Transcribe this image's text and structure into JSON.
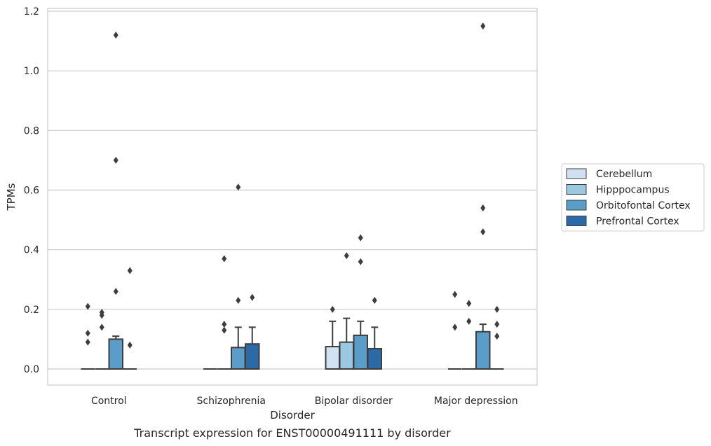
{
  "chart_data": {
    "type": "box",
    "caption": "Transcript expression for ENST00000491111 by disorder",
    "xlabel": "Disorder",
    "ylabel": "TPMs",
    "ylim": [
      -0.055,
      1.21
    ],
    "yticks": [
      0.0,
      0.2,
      0.4,
      0.6,
      0.8,
      1.0,
      1.2
    ],
    "ytick_labels": [
      "0.0",
      "0.2",
      "0.4",
      "0.6",
      "0.8",
      "1.0",
      "1.2"
    ],
    "grid": "horizontal",
    "legend_position": "right",
    "categories": [
      "Control",
      "Schizophrenia",
      "Bipolar disorder",
      "Major depression"
    ],
    "series": [
      {
        "name": "Cerebellum",
        "color": "#d0e1f2",
        "boxes": [
          {
            "q1": 0,
            "median": 0,
            "q3": 0,
            "whisker_low": 0,
            "whisker_high": 0,
            "outliers": [
              0.09,
              0.12,
              0.21
            ]
          },
          {
            "q1": 0,
            "median": 0,
            "q3": 0,
            "whisker_low": 0,
            "whisker_high": 0,
            "outliers": []
          },
          {
            "q1": 0,
            "median": 0,
            "q3": 0.075,
            "whisker_low": 0,
            "whisker_high": 0.16,
            "outliers": [
              0.2
            ]
          },
          {
            "q1": 0,
            "median": 0,
            "q3": 0,
            "whisker_low": 0,
            "whisker_high": 0,
            "outliers": [
              0.14,
              0.25
            ]
          }
        ]
      },
      {
        "name": "Hipppocampus",
        "color": "#9ac8e0",
        "boxes": [
          {
            "q1": 0,
            "median": 0,
            "q3": 0,
            "whisker_low": 0,
            "whisker_high": 0,
            "outliers": [
              0.14,
              0.18,
              0.19
            ]
          },
          {
            "q1": 0,
            "median": 0,
            "q3": 0,
            "whisker_low": 0,
            "whisker_high": 0,
            "outliers": [
              0.13,
              0.15,
              0.37
            ]
          },
          {
            "q1": 0,
            "median": 0,
            "q3": 0.09,
            "whisker_low": 0,
            "whisker_high": 0.17,
            "outliers": [
              0.38
            ]
          },
          {
            "q1": 0,
            "median": 0,
            "q3": 0,
            "whisker_low": 0,
            "whisker_high": 0,
            "outliers": [
              0.16,
              0.22
            ]
          }
        ]
      },
      {
        "name": "Orbitofontal Cortex",
        "color": "#5a9dc9",
        "boxes": [
          {
            "q1": 0,
            "median": 0,
            "q3": 0.1,
            "whisker_low": 0,
            "whisker_high": 0.11,
            "outliers": [
              0.26,
              0.7,
              1.12
            ]
          },
          {
            "q1": 0,
            "median": 0,
            "q3": 0.072,
            "whisker_low": 0,
            "whisker_high": 0.14,
            "outliers": [
              0.23,
              0.61
            ]
          },
          {
            "q1": 0,
            "median": 0,
            "q3": 0.113,
            "whisker_low": 0,
            "whisker_high": 0.16,
            "outliers": [
              0.36,
              0.44
            ]
          },
          {
            "q1": 0,
            "median": 0,
            "q3": 0.125,
            "whisker_low": 0,
            "whisker_high": 0.15,
            "outliers": [
              0.46,
              0.54,
              1.15
            ]
          }
        ]
      },
      {
        "name": "Prefrontal Cortex",
        "color": "#2b6aa7",
        "boxes": [
          {
            "q1": 0,
            "median": 0,
            "q3": 0,
            "whisker_low": 0,
            "whisker_high": 0,
            "outliers": [
              0.08,
              0.33
            ]
          },
          {
            "q1": 0,
            "median": 0,
            "q3": 0.084,
            "whisker_low": 0,
            "whisker_high": 0.14,
            "outliers": [
              0.24
            ]
          },
          {
            "q1": 0,
            "median": 0,
            "q3": 0.068,
            "whisker_low": 0,
            "whisker_high": 0.14,
            "outliers": [
              0.23
            ]
          },
          {
            "q1": 0,
            "median": 0,
            "q3": 0,
            "whisker_low": 0,
            "whisker_high": 0,
            "outliers": [
              0.11,
              0.15,
              0.2
            ]
          }
        ]
      }
    ]
  }
}
